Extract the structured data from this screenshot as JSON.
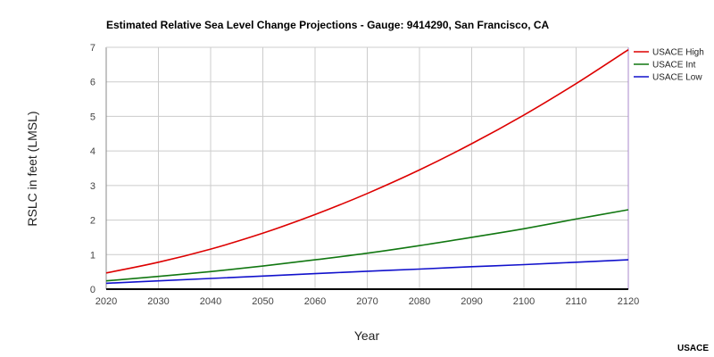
{
  "chart_data": {
    "type": "line",
    "title": "Estimated Relative Sea Level Change Projections - Gauge: 9414290, San Francisco, CA",
    "xlabel": "Year",
    "ylabel": "RSLC in feet (LMSL)",
    "source": "USACE",
    "x": [
      2020,
      2030,
      2040,
      2050,
      2060,
      2070,
      2080,
      2090,
      2100,
      2110,
      2120
    ],
    "xlim": [
      2020,
      2120
    ],
    "ylim": [
      0,
      7
    ],
    "x_ticks": [
      2020,
      2030,
      2040,
      2050,
      2060,
      2070,
      2080,
      2090,
      2100,
      2110,
      2120
    ],
    "y_ticks": [
      0,
      1,
      2,
      3,
      4,
      5,
      6,
      7
    ],
    "grid": true,
    "legend_position": "right",
    "series": [
      {
        "name": "USACE High",
        "color": "#dd0000",
        "values": [
          0.47,
          0.78,
          1.16,
          1.62,
          2.16,
          2.77,
          3.45,
          4.21,
          5.04,
          5.95,
          6.93
        ]
      },
      {
        "name": "USACE Int",
        "color": "#117711",
        "values": [
          0.24,
          0.37,
          0.51,
          0.67,
          0.85,
          1.04,
          1.26,
          1.5,
          1.75,
          2.03,
          2.3
        ]
      },
      {
        "name": "USACE Low",
        "color": "#1111cc",
        "values": [
          0.17,
          0.24,
          0.31,
          0.38,
          0.45,
          0.52,
          0.58,
          0.65,
          0.71,
          0.78,
          0.85
        ]
      }
    ]
  }
}
